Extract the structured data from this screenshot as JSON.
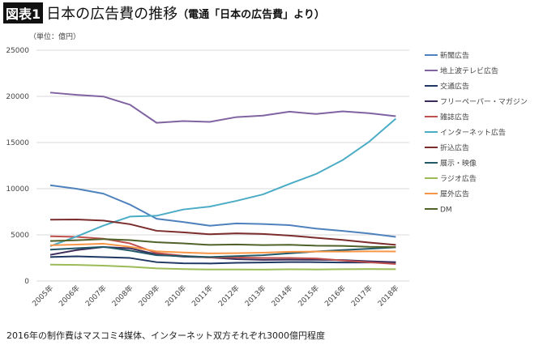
{
  "title": {
    "badge": "図表1",
    "main": "日本の広告費の推移",
    "sub": "（電通「日本の広告費」より）"
  },
  "unit": "（単位：億円）",
  "note": "2016年の制作費はマスコミ4媒体、インターネット双方それぞれ3000億円程度",
  "chart_data": {
    "type": "line",
    "title": "日本の広告費の推移",
    "ylabel": "（単位：億円）",
    "ylim": [
      0,
      25000
    ],
    "yticks": [
      0,
      5000,
      10000,
      15000,
      20000,
      25000
    ],
    "grid": true,
    "legend": "right",
    "categories": [
      "2005年",
      "2006年",
      "2007年",
      "2008年",
      "2009年",
      "2010年",
      "2011年",
      "2012年",
      "2013年",
      "2014年",
      "2015年",
      "2016年",
      "2017年",
      "2018年"
    ],
    "series": [
      {
        "name": "新聞広告",
        "color": "#4f81bd",
        "values": [
          10377,
          9986,
          9462,
          8276,
          6739,
          6396,
          5990,
          6242,
          6170,
          6057,
          5679,
          5431,
          5147,
          4784
        ]
      },
      {
        "name": "地上波テレビ広告",
        "color": "#8064a2",
        "values": [
          20411,
          20161,
          19981,
          19092,
          17139,
          17321,
          17237,
          17757,
          17913,
          18347,
          18088,
          18374,
          18178,
          17848
        ]
      },
      {
        "name": "交通広告",
        "color": "#1f3864",
        "values": [
          2598,
          2673,
          2591,
          2495,
          2045,
          1922,
          1900,
          1975,
          2004,
          2054,
          2044,
          2003,
          2002,
          2025
        ]
      },
      {
        "name": "フリーペーパー・マガジン",
        "color": "#3b2c5a",
        "values": [
          2835,
          3357,
          3684,
          3545,
          2881,
          2640,
          2550,
          2367,
          2289,
          2316,
          2303,
          2267,
          2136,
          2038
        ]
      },
      {
        "name": "雑誌広告",
        "color": "#c0504d",
        "values": [
          4842,
          4777,
          4585,
          4078,
          3034,
          2733,
          2542,
          2551,
          2499,
          2500,
          2443,
          2223,
          2023,
          1841
        ]
      },
      {
        "name": "インターネット広告",
        "color": "#4bacc6",
        "values": [
          3777,
          4826,
          6003,
          6983,
          7069,
          7747,
          8062,
          8680,
          9381,
          10519,
          11594,
          13100,
          15094,
          17589
        ]
      },
      {
        "name": "折込広告",
        "color": "#7b2c2c",
        "values": [
          6646,
          6662,
          6549,
          6156,
          5444,
          5279,
          5061,
          5165,
          5103,
          4920,
          4687,
          4450,
          4170,
          3911
        ]
      },
      {
        "name": "展示・映像",
        "color": "#215968",
        "values": [
          3400,
          3550,
          3700,
          3300,
          2800,
          2700,
          2600,
          2700,
          2800,
          3000,
          3200,
          3350,
          3500,
          3650
        ]
      },
      {
        "name": "ラジオ広告",
        "color": "#9bbb59",
        "values": [
          1778,
          1744,
          1671,
          1549,
          1370,
          1299,
          1247,
          1246,
          1243,
          1272,
          1254,
          1285,
          1290,
          1278
        ]
      },
      {
        "name": "屋外広告",
        "color": "#f79646",
        "values": [
          3866,
          3946,
          4041,
          3709,
          3218,
          3095,
          2995,
          3013,
          3071,
          3171,
          3188,
          3194,
          3208,
          3199
        ]
      },
      {
        "name": "DM",
        "color": "#4f6228",
        "values": [
          4327,
          4424,
          4537,
          4427,
          4198,
          4075,
          3910,
          3960,
          3893,
          3923,
          3829,
          3804,
          3701,
          3678
        ]
      }
    ]
  }
}
